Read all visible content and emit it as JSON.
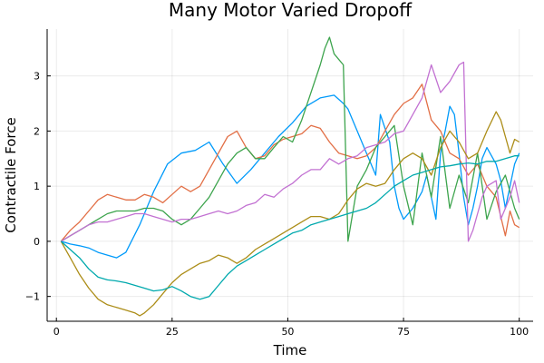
{
  "chart_data": {
    "type": "line",
    "title": "Many Motor Varied Dropoff",
    "xlabel": "Time",
    "ylabel": "Contractile Force",
    "xlim": [
      -2,
      103
    ],
    "ylim": [
      -1.45,
      3.85
    ],
    "xticks": [
      0,
      25,
      50,
      75,
      100
    ],
    "yticks": [
      -1,
      0,
      1,
      2,
      3
    ],
    "grid": true,
    "legend": "none",
    "series": [
      {
        "color": "#009AFA",
        "x": [
          1,
          3,
          5,
          7,
          9,
          11,
          13,
          15,
          18,
          21,
          24,
          27,
          30,
          33,
          36,
          39,
          42,
          45,
          48,
          51,
          54,
          57,
          60,
          62,
          63,
          65,
          67,
          69,
          70,
          72,
          73,
          74,
          75,
          77,
          79,
          80,
          81,
          82,
          83,
          84,
          85,
          86,
          87,
          88,
          89,
          90,
          91,
          92,
          93,
          95,
          96,
          97,
          98,
          99,
          100
        ],
        "y": [
          0,
          -0.05,
          -0.08,
          -0.12,
          -0.2,
          -0.25,
          -0.3,
          -0.2,
          0.3,
          0.9,
          1.4,
          1.6,
          1.65,
          1.8,
          1.4,
          1.05,
          1.3,
          1.6,
          1.9,
          2.15,
          2.45,
          2.6,
          2.65,
          2.5,
          2.4,
          2.0,
          1.6,
          1.2,
          2.3,
          1.8,
          1.0,
          0.6,
          0.4,
          0.6,
          0.9,
          1.2,
          0.8,
          0.4,
          1.6,
          2.0,
          2.45,
          2.3,
          1.6,
          0.8,
          0.3,
          0.6,
          1.0,
          1.5,
          1.7,
          1.4,
          1.1,
          0.6,
          1.0,
          1.4,
          1.6
        ]
      },
      {
        "color": "#E26F46",
        "x": [
          1,
          3,
          5,
          7,
          9,
          11,
          13,
          15,
          17,
          19,
          21,
          23,
          25,
          27,
          29,
          31,
          33,
          35,
          37,
          39,
          41,
          43,
          45,
          47,
          49,
          51,
          53,
          55,
          57,
          59,
          61,
          63,
          65,
          67,
          69,
          71,
          73,
          75,
          77,
          79,
          81,
          83,
          85,
          87,
          89,
          91,
          93,
          95,
          97,
          98,
          99,
          100
        ],
        "y": [
          0,
          0.2,
          0.35,
          0.55,
          0.75,
          0.85,
          0.8,
          0.75,
          0.75,
          0.85,
          0.8,
          0.7,
          0.85,
          1.0,
          0.9,
          1.0,
          1.3,
          1.6,
          1.9,
          2.0,
          1.7,
          1.5,
          1.55,
          1.75,
          1.85,
          1.9,
          1.95,
          2.1,
          2.05,
          1.8,
          1.6,
          1.55,
          1.5,
          1.55,
          1.7,
          2.0,
          2.3,
          2.5,
          2.6,
          2.85,
          2.2,
          2.0,
          1.6,
          1.5,
          1.2,
          1.4,
          1.0,
          0.8,
          0.1,
          0.55,
          0.3,
          0.25
        ]
      },
      {
        "color": "#3DA44D",
        "x": [
          1,
          3,
          5,
          7,
          9,
          11,
          13,
          15,
          17,
          19,
          21,
          23,
          25,
          27,
          29,
          31,
          33,
          35,
          37,
          39,
          41,
          43,
          45,
          47,
          49,
          51,
          53,
          55,
          57,
          58,
          59,
          60,
          61,
          62,
          63,
          64,
          65,
          67,
          69,
          71,
          73,
          75,
          77,
          79,
          81,
          83,
          85,
          87,
          89,
          91,
          93,
          95,
          97,
          99,
          100
        ],
        "y": [
          0,
          0.1,
          0.2,
          0.3,
          0.4,
          0.5,
          0.55,
          0.55,
          0.55,
          0.6,
          0.6,
          0.55,
          0.4,
          0.3,
          0.4,
          0.6,
          0.8,
          1.1,
          1.4,
          1.6,
          1.7,
          1.5,
          1.5,
          1.7,
          1.9,
          1.8,
          2.2,
          2.7,
          3.2,
          3.5,
          3.7,
          3.4,
          3.3,
          3.2,
          0.0,
          0.5,
          1.0,
          1.3,
          1.7,
          1.9,
          2.1,
          1.0,
          0.3,
          1.6,
          0.8,
          1.9,
          0.6,
          1.2,
          0.7,
          1.6,
          0.4,
          0.9,
          1.2,
          0.6,
          0.4
        ]
      },
      {
        "color": "#C271D2",
        "x": [
          1,
          3,
          5,
          7,
          9,
          11,
          13,
          15,
          17,
          19,
          21,
          23,
          25,
          27,
          29,
          31,
          33,
          35,
          37,
          39,
          41,
          43,
          45,
          47,
          49,
          51,
          53,
          55,
          57,
          59,
          61,
          63,
          65,
          67,
          69,
          71,
          73,
          75,
          77,
          79,
          81,
          83,
          85,
          87,
          88,
          89,
          90,
          91,
          92,
          93,
          95,
          96,
          97,
          98,
          99,
          100
        ],
        "y": [
          0,
          0.1,
          0.2,
          0.3,
          0.35,
          0.35,
          0.4,
          0.45,
          0.5,
          0.5,
          0.45,
          0.4,
          0.35,
          0.4,
          0.4,
          0.45,
          0.5,
          0.55,
          0.5,
          0.55,
          0.65,
          0.7,
          0.85,
          0.8,
          0.95,
          1.05,
          1.2,
          1.3,
          1.3,
          1.5,
          1.4,
          1.5,
          1.55,
          1.7,
          1.75,
          1.8,
          1.95,
          2.0,
          2.3,
          2.6,
          3.2,
          2.7,
          2.9,
          3.2,
          3.25,
          0.0,
          0.2,
          0.5,
          0.8,
          1.0,
          1.1,
          0.4,
          0.6,
          0.8,
          1.1,
          0.7
        ]
      },
      {
        "color": "#AC8D18",
        "x": [
          1,
          3,
          5,
          7,
          9,
          11,
          13,
          15,
          17,
          18,
          19,
          21,
          23,
          25,
          27,
          29,
          31,
          33,
          35,
          37,
          39,
          41,
          43,
          45,
          47,
          49,
          51,
          53,
          55,
          57,
          59,
          61,
          63,
          65,
          67,
          69,
          71,
          73,
          75,
          77,
          79,
          81,
          83,
          85,
          87,
          89,
          91,
          93,
          95,
          96,
          97,
          98,
          99,
          100
        ],
        "y": [
          0,
          -0.3,
          -0.6,
          -0.85,
          -1.05,
          -1.15,
          -1.2,
          -1.25,
          -1.3,
          -1.35,
          -1.3,
          -1.15,
          -0.95,
          -0.75,
          -0.6,
          -0.5,
          -0.4,
          -0.35,
          -0.25,
          -0.3,
          -0.4,
          -0.3,
          -0.15,
          -0.05,
          0.05,
          0.15,
          0.25,
          0.35,
          0.45,
          0.45,
          0.4,
          0.5,
          0.75,
          0.95,
          1.05,
          1.0,
          1.05,
          1.3,
          1.5,
          1.6,
          1.5,
          1.2,
          1.7,
          2.0,
          1.8,
          1.5,
          1.6,
          2.0,
          2.35,
          2.2,
          1.9,
          1.6,
          1.85,
          1.8
        ]
      },
      {
        "color": "#00A9AD",
        "x": [
          1,
          3,
          5,
          7,
          9,
          11,
          13,
          15,
          17,
          19,
          21,
          23,
          25,
          27,
          29,
          31,
          33,
          35,
          37,
          39,
          41,
          43,
          45,
          47,
          49,
          51,
          53,
          55,
          57,
          59,
          61,
          63,
          65,
          67,
          69,
          71,
          73,
          75,
          77,
          79,
          81,
          83,
          85,
          87,
          89,
          91,
          93,
          95,
          97,
          99,
          100
        ],
        "y": [
          0,
          -0.15,
          -0.3,
          -0.5,
          -0.65,
          -0.7,
          -0.72,
          -0.75,
          -0.8,
          -0.85,
          -0.9,
          -0.88,
          -0.82,
          -0.9,
          -1.0,
          -1.05,
          -1.0,
          -0.8,
          -0.6,
          -0.45,
          -0.35,
          -0.25,
          -0.15,
          -0.05,
          0.05,
          0.15,
          0.2,
          0.3,
          0.35,
          0.4,
          0.45,
          0.5,
          0.55,
          0.6,
          0.7,
          0.85,
          1.0,
          1.1,
          1.2,
          1.25,
          1.3,
          1.35,
          1.37,
          1.4,
          1.42,
          1.4,
          1.45,
          1.45,
          1.5,
          1.55,
          1.55
        ]
      }
    ]
  }
}
